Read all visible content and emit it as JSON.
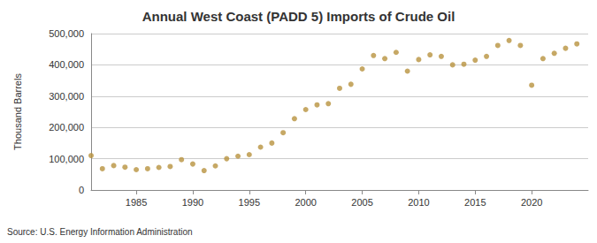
{
  "chart_data": {
    "type": "scatter",
    "title": "Annual West Coast (PADD 5) Imports of Crude Oil",
    "y_label": "Thousand Barrels",
    "annotation": "Source: U.S. Energy Information Administration",
    "x": [
      1981,
      1982,
      1983,
      1984,
      1985,
      1986,
      1987,
      1988,
      1989,
      1990,
      1991,
      1992,
      1993,
      1994,
      1995,
      1996,
      1997,
      1998,
      1999,
      2000,
      2001,
      2002,
      2003,
      2004,
      2005,
      2006,
      2007,
      2008,
      2009,
      2010,
      2011,
      2012,
      2013,
      2014,
      2015,
      2016,
      2017,
      2018,
      2019,
      2020,
      2021,
      2022,
      2023,
      2024
    ],
    "values": [
      110000,
      68000,
      78000,
      73000,
      65000,
      68000,
      72000,
      75000,
      97000,
      83000,
      62000,
      77000,
      100000,
      108000,
      113000,
      137000,
      150000,
      183000,
      228000,
      257000,
      272000,
      276000,
      325000,
      338000,
      387000,
      430000,
      420000,
      440000,
      380000,
      417000,
      432000,
      427000,
      400000,
      402000,
      415000,
      427000,
      462000,
      478000,
      462000,
      335000,
      420000,
      437000,
      453000,
      467000
    ],
    "color": "#b8923f",
    "marker": "circle",
    "xlim": [
      1981,
      2025
    ],
    "xticks": [
      1985,
      1990,
      1995,
      2000,
      2005,
      2010,
      2015,
      2020
    ],
    "ylim": [
      0,
      500000
    ],
    "yticks": [
      0,
      {
        "value": 100000,
        "label": "100,000"
      },
      {
        "value": 200000,
        "label": "200,000"
      },
      {
        "value": 300000,
        "label": "300,000"
      },
      {
        "value": 400000,
        "label": "400,000"
      },
      {
        "value": 500000,
        "label": "500,000"
      }
    ],
    "grid": true
  }
}
